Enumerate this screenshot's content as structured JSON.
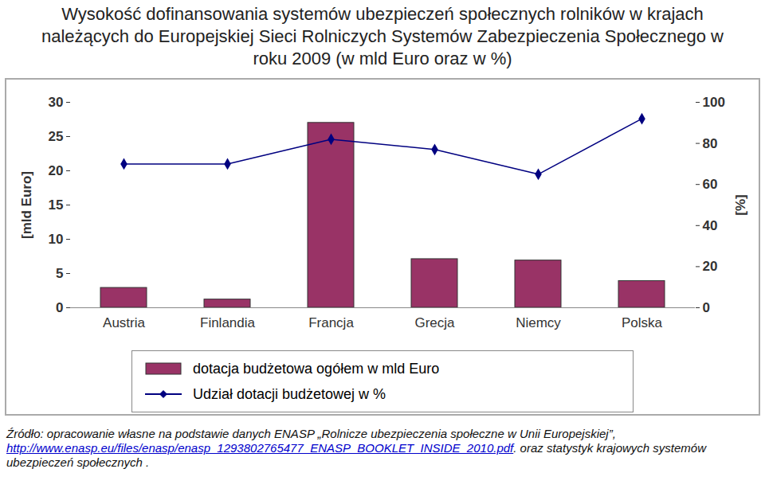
{
  "chart_data": {
    "type": "bar",
    "title": "Wysokość dofinansowania systemów ubezpieczeń społecznych rolników w krajach należących do Europejskiej Sieci Rolniczych Systemów Zabezpieczenia Społecznego w roku 2009 (w mld Euro oraz w %)",
    "categories": [
      "Austria",
      "Finlandia",
      "Francja",
      "Grecja",
      "Niemcy",
      "Polska"
    ],
    "series": [
      {
        "name": "dotacja budżetowa ogółem w mld Euro",
        "type": "bar",
        "color": "#993366",
        "values": [
          2.9,
          1.2,
          27.0,
          7.1,
          6.9,
          3.9
        ]
      },
      {
        "name": "Udział dotacji budżetowej w %",
        "type": "line",
        "color": "#000080",
        "marker": "diamond",
        "axis": "y2",
        "values": [
          70,
          70,
          82,
          77,
          65,
          92
        ]
      }
    ],
    "ylabel": "[mld Euro]",
    "y2label": "[%]",
    "ylim": [
      0,
      30
    ],
    "yticks": [
      0,
      5,
      10,
      15,
      20,
      25,
      30
    ],
    "y2lim": [
      0,
      100
    ],
    "y2ticks": [
      0,
      20,
      40,
      60,
      80,
      100
    ],
    "grid": false,
    "legend": "bottom",
    "source": {
      "text_before": "Źródło: opracowanie własne na podstawie danych ENASP „Rolnicze ubezpieczenia społeczne w Unii Europejskiej”, ",
      "link": "http://www.enasp.eu/files/enasp/enasp_1293802765477_ENASP_BOOKLET_INSIDE_2010.pdf",
      "text_after": ". oraz statystyk krajowych systemów ubezpieczeń społecznych ."
    }
  }
}
